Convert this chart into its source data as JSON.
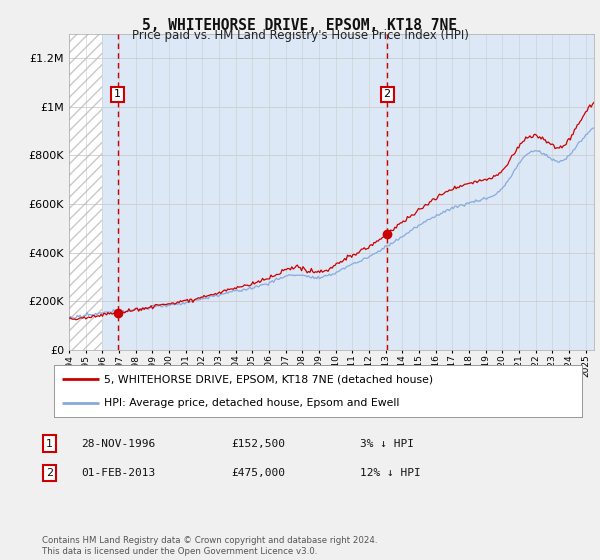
{
  "title": "5, WHITEHORSE DRIVE, EPSOM, KT18 7NE",
  "subtitle": "Price paid vs. HM Land Registry's House Price Index (HPI)",
  "ylim": [
    0,
    1300000
  ],
  "yticks": [
    0,
    200000,
    400000,
    600000,
    800000,
    1000000,
    1200000
  ],
  "ytick_labels": [
    "£0",
    "£200K",
    "£400K",
    "£600K",
    "£800K",
    "£1M",
    "£1.2M"
  ],
  "purchase1_x": 1996.91,
  "purchase1_y": 152500,
  "purchase2_x": 2013.09,
  "purchase2_y": 475000,
  "line_color_property": "#cc0000",
  "line_color_hpi": "#88aadd",
  "legend_property": "5, WHITEHORSE DRIVE, EPSOM, KT18 7NE (detached house)",
  "legend_hpi": "HPI: Average price, detached house, Epsom and Ewell",
  "footer": "Contains HM Land Registry data © Crown copyright and database right 2024.\nThis data is licensed under the Open Government Licence v3.0.",
  "xmin": 1994,
  "xmax": 2025.5,
  "hatch_xmax": 1996.0,
  "blue_bg_xmin": 1996.0,
  "blue_bg_xmax": 2025.5,
  "background_color": "#f0f0f0",
  "plot_bg_color": "#ffffff",
  "grid_color": "#cccccc",
  "hatch_color": "#bbbbbb",
  "blue_bg_color": "#dce8f5"
}
